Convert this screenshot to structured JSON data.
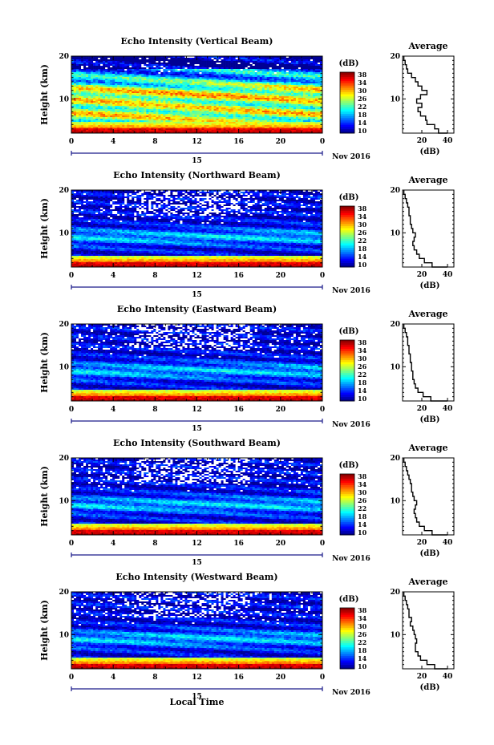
{
  "figure": {
    "x_axis_label": "Local Time",
    "colorbar_unit": "(dB)",
    "colorbar_ticks": [
      "10",
      "14",
      "18",
      "22",
      "26",
      "30",
      "34",
      "38"
    ],
    "date_label": "Nov 2016",
    "day_label": "15",
    "x_ticks": [
      "0",
      "4",
      "8",
      "12",
      "16",
      "20",
      "0"
    ],
    "y_ticks": [
      "10",
      "20"
    ],
    "y_axis_label": "Height (km)",
    "avg_title": "Average",
    "avg_xlabel": "(dB)",
    "avg_x_ticks": [
      "20",
      "40"
    ],
    "avg_y_ticks": [
      "10",
      "20"
    ]
  },
  "chart_data": [
    {
      "type": "heatmap",
      "title": "Echo Intensity (Vertical Beam)",
      "xlabel": "",
      "ylabel": "Height (km)",
      "x_unit": "hour (local time)",
      "xlim": [
        0,
        24
      ],
      "ylim": [
        2,
        20
      ],
      "color_range_dB": [
        10,
        38
      ],
      "colormap": "jet",
      "features": "broad high-intensity layers (22-30 dB) at 2-15 km; strongest (34-38 dB) below 3 km",
      "average_profile": {
        "title": "Average",
        "xlabel": "(dB)",
        "xlim": [
          5,
          45
        ],
        "ylim": [
          2,
          20
        ],
        "height_km": [
          2,
          3,
          4,
          5,
          6,
          7,
          8,
          9,
          10,
          11,
          12,
          13,
          14,
          15,
          16,
          17,
          18,
          19,
          20
        ],
        "intensity_dB": [
          40,
          33,
          30,
          24,
          23,
          19,
          17,
          20,
          16,
          19,
          24,
          20,
          17,
          15,
          12,
          9,
          8,
          7,
          6
        ]
      }
    },
    {
      "type": "heatmap",
      "title": "Echo Intensity (Northward Beam)",
      "xlabel": "",
      "ylabel": "Height (km)",
      "x_unit": "hour (local time)",
      "xlim": [
        0,
        24
      ],
      "ylim": [
        2,
        20
      ],
      "color_range_dB": [
        10,
        38
      ],
      "colormap": "jet",
      "features": "mostly 10-18 dB above 5 km; strong echo (30-38 dB) below 3 km; missing data (white) 14-20 km around 8-16 h",
      "average_profile": {
        "title": "Average",
        "xlabel": "(dB)",
        "xlim": [
          5,
          45
        ],
        "ylim": [
          2,
          20
        ],
        "height_km": [
          2,
          3,
          4,
          5,
          6,
          7,
          8,
          9,
          10,
          11,
          12,
          13,
          14,
          15,
          16,
          17,
          18,
          19,
          20
        ],
        "intensity_dB": [
          40,
          28,
          22,
          18,
          16,
          14,
          13,
          14,
          15,
          13,
          12,
          11,
          11,
          10,
          10,
          9,
          8,
          7,
          6
        ]
      }
    },
    {
      "type": "heatmap",
      "title": "Echo Intensity (Eastward Beam)",
      "xlabel": "",
      "ylabel": "Height (km)",
      "x_unit": "hour (local time)",
      "xlim": [
        0,
        24
      ],
      "ylim": [
        2,
        20
      ],
      "color_range_dB": [
        10,
        38
      ],
      "colormap": "jet",
      "features": "mostly 10-18 dB above 5 km; strong echo below 3 km; missing data 14-20 km",
      "average_profile": {
        "title": "Average",
        "xlabel": "(dB)",
        "xlim": [
          5,
          45
        ],
        "ylim": [
          2,
          20
        ],
        "height_km": [
          2,
          3,
          4,
          5,
          6,
          7,
          8,
          9,
          10,
          11,
          12,
          13,
          14,
          15,
          16,
          17,
          18,
          19,
          20
        ],
        "intensity_dB": [
          40,
          27,
          21,
          17,
          15,
          14,
          13,
          13,
          12,
          12,
          11,
          11,
          10,
          10,
          9,
          9,
          8,
          7,
          6
        ]
      }
    },
    {
      "type": "heatmap",
      "title": "Echo Intensity (Southward Beam)",
      "xlabel": "",
      "ylabel": "Height (km)",
      "x_unit": "hour (local time)",
      "xlim": [
        0,
        24
      ],
      "ylim": [
        2,
        20
      ],
      "color_range_dB": [
        10,
        38
      ],
      "colormap": "jet",
      "features": "mostly 10-18 dB above 5 km; strong echo below 3 km; missing data 14-20 km",
      "average_profile": {
        "title": "Average",
        "xlabel": "(dB)",
        "xlim": [
          5,
          45
        ],
        "ylim": [
          2,
          20
        ],
        "height_km": [
          2,
          3,
          4,
          5,
          6,
          7,
          8,
          9,
          10,
          11,
          12,
          13,
          14,
          15,
          16,
          17,
          18,
          19,
          20
        ],
        "intensity_dB": [
          40,
          28,
          22,
          18,
          16,
          15,
          14,
          15,
          16,
          14,
          13,
          12,
          12,
          11,
          10,
          9,
          8,
          7,
          6
        ]
      }
    },
    {
      "type": "heatmap",
      "title": "Echo Intensity (Westward Beam)",
      "xlabel": "Local Time",
      "ylabel": "Height (km)",
      "x_unit": "hour (local time)",
      "xlim": [
        0,
        24
      ],
      "ylim": [
        2,
        20
      ],
      "color_range_dB": [
        10,
        38
      ],
      "colormap": "jet",
      "features": "mostly 10-18 dB above 5 km; strong echo below 3 km; extensive missing data 14-20 km around 7-16 h",
      "average_profile": {
        "title": "Average",
        "xlabel": "(dB)",
        "xlim": [
          5,
          45
        ],
        "ylim": [
          2,
          20
        ],
        "height_km": [
          2,
          3,
          4,
          5,
          6,
          7,
          8,
          9,
          10,
          11,
          12,
          13,
          14,
          15,
          16,
          17,
          18,
          19,
          20
        ],
        "intensity_dB": [
          40,
          30,
          24,
          19,
          17,
          15,
          15,
          16,
          15,
          14,
          13,
          11,
          12,
          10,
          10,
          9,
          8,
          7,
          6
        ]
      }
    }
  ]
}
